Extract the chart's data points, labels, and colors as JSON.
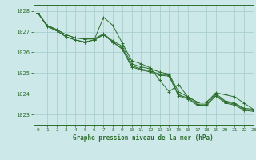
{
  "title": "Graphe pression niveau de la mer (hPa)",
  "bg_color": "#cce8e8",
  "grid_color": "#aacece",
  "line_color": "#2d6e2d",
  "xlim": [
    -0.5,
    23
  ],
  "ylim": [
    1022.5,
    1028.3
  ],
  "yticks": [
    1023,
    1024,
    1025,
    1026,
    1027,
    1028
  ],
  "xticks": [
    0,
    1,
    2,
    3,
    4,
    5,
    6,
    7,
    8,
    9,
    10,
    11,
    12,
    13,
    14,
    15,
    16,
    17,
    18,
    19,
    20,
    21,
    22,
    23
  ],
  "series": [
    [
      1027.9,
      1027.3,
      1027.1,
      1026.85,
      1026.7,
      1026.65,
      1026.65,
      1026.9,
      1026.55,
      1026.3,
      1025.45,
      1025.3,
      1025.2,
      1025.05,
      1024.95,
      1024.1,
      1023.85,
      1023.6,
      1023.6,
      1024.0,
      1023.65,
      1023.55,
      1023.3,
      1023.25
    ],
    [
      1027.9,
      1027.3,
      1027.1,
      1026.85,
      1026.7,
      1026.65,
      1026.65,
      1026.85,
      1026.5,
      1026.2,
      1025.35,
      1025.2,
      1025.1,
      1024.95,
      1024.9,
      1023.95,
      1023.8,
      1023.5,
      1023.5,
      1023.95,
      1023.6,
      1023.5,
      1023.25,
      1023.2
    ],
    [
      1027.9,
      1027.25,
      1027.05,
      1026.75,
      1026.6,
      1026.5,
      1026.6,
      1027.7,
      1027.3,
      1026.45,
      1025.6,
      1025.45,
      1025.25,
      1024.65,
      1024.1,
      1024.45,
      1023.85,
      1023.6,
      1023.6,
      1024.05,
      1023.95,
      1023.85,
      1023.55,
      1023.25
    ],
    [
      1027.9,
      1027.25,
      1027.05,
      1026.75,
      1026.6,
      1026.5,
      1026.6,
      1026.85,
      1026.5,
      1026.15,
      1025.3,
      1025.15,
      1025.05,
      1024.9,
      1024.85,
      1023.9,
      1023.75,
      1023.45,
      1023.45,
      1023.9,
      1023.55,
      1023.45,
      1023.2,
      1023.15
    ]
  ]
}
